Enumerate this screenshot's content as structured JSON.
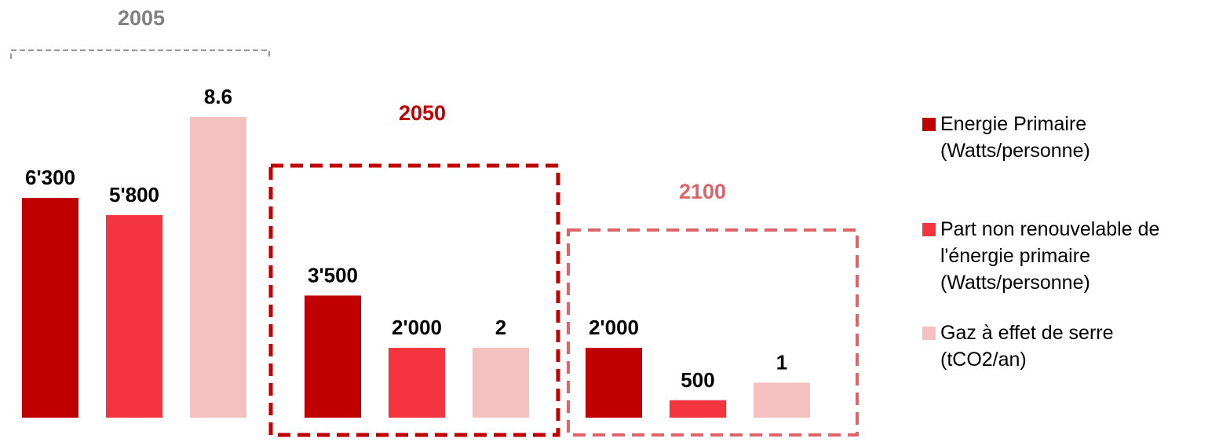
{
  "chart_data": {
    "type": "bar",
    "categories": [
      "2005",
      "2050",
      "2100"
    ],
    "series": [
      {
        "name": "Energie Primaire (Watts/personne)",
        "color": "#c00000",
        "values": [
          6300,
          3500,
          2000
        ],
        "labels": [
          "6'300",
          "3'500",
          "2'000"
        ]
      },
      {
        "name": "Part non renouvelable de l'énergie primaire (Watts/personne)",
        "color": "#f4353f",
        "values": [
          5800,
          2000,
          500
        ],
        "labels": [
          "5'800",
          "2'000",
          "500"
        ]
      },
      {
        "name": "Gaz à effet de serre (tCO2/an)",
        "color": "#f4c0c0",
        "values": [
          8.6,
          2,
          1
        ],
        "labels": [
          "8.6",
          "2",
          "1"
        ]
      }
    ],
    "group_colors": [
      "#808080",
      "#c00000",
      "#e0636a"
    ],
    "legend": {
      "position": "right",
      "entries": [
        {
          "lines": [
            "Energie Primaire",
            "(Watts/personne)"
          ],
          "color": "#c00000"
        },
        {
          "lines": [
            "Part non renouvelable de",
            "l'énergie primaire",
            "(Watts/personne)"
          ],
          "color": "#f4353f"
        },
        {
          "lines": [
            "Gaz à effet de serre",
            "(tCO2/an)"
          ],
          "color": "#f4c0c0"
        }
      ]
    },
    "title": "",
    "xlabel": "",
    "ylabel": "",
    "grid": false,
    "axes_visible": false
  }
}
